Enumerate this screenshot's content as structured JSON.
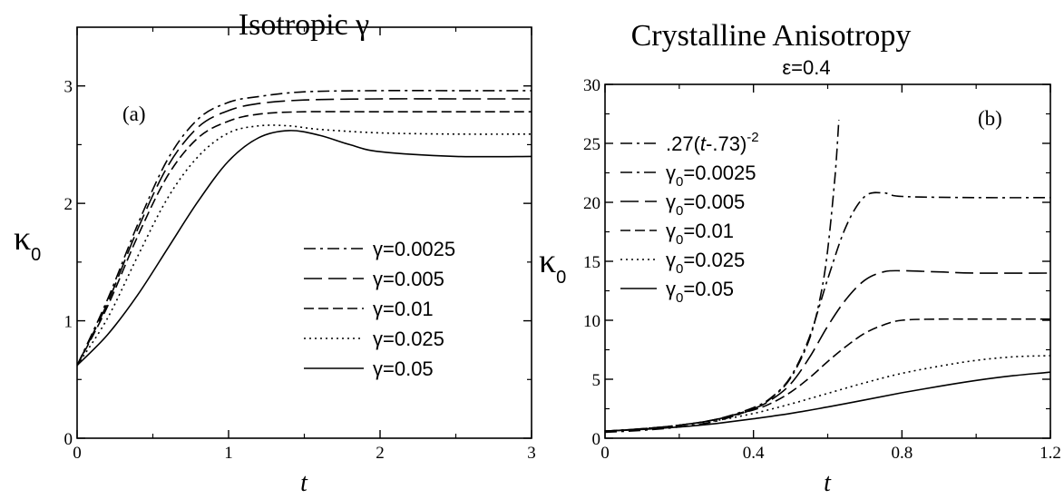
{
  "chart_data": [
    {
      "type": "line",
      "title": "Isotropic γ",
      "xlabel": "t",
      "ylabel": "κ",
      "ylabel_sub": "0",
      "panel_label": "(a)",
      "xlim": [
        0,
        3
      ],
      "ylim": [
        0,
        3.5
      ],
      "xticks": [
        "0",
        "1",
        "2",
        "3"
      ],
      "yticks": [
        "0",
        "1",
        "2",
        "3"
      ],
      "grid": false,
      "legend_position": "center-right",
      "series": [
        {
          "name": "γ=0.0025",
          "style": "dashdot",
          "x": [
            0,
            0.2,
            0.4,
            0.6,
            0.8,
            1.0,
            1.2,
            1.5,
            2.0,
            2.5,
            3.0
          ],
          "y": [
            0.62,
            1.18,
            1.82,
            2.38,
            2.72,
            2.86,
            2.91,
            2.95,
            2.96,
            2.96,
            2.96
          ]
        },
        {
          "name": "γ=0.005",
          "style": "longdash",
          "x": [
            0,
            0.2,
            0.4,
            0.6,
            0.8,
            1.0,
            1.2,
            1.5,
            2.0,
            2.5,
            3.0
          ],
          "y": [
            0.62,
            1.15,
            1.78,
            2.32,
            2.65,
            2.79,
            2.85,
            2.88,
            2.89,
            2.89,
            2.89
          ]
        },
        {
          "name": "γ=0.01",
          "style": "dash",
          "x": [
            0,
            0.2,
            0.4,
            0.6,
            0.8,
            1.0,
            1.2,
            1.5,
            2.0,
            2.5,
            3.0
          ],
          "y": [
            0.62,
            1.12,
            1.72,
            2.24,
            2.56,
            2.7,
            2.76,
            2.78,
            2.78,
            2.78,
            2.78
          ]
        },
        {
          "name": "γ=0.025",
          "style": "dotted",
          "x": [
            0,
            0.2,
            0.4,
            0.6,
            0.8,
            1.0,
            1.2,
            1.4,
            1.6,
            2.0,
            2.5,
            3.0
          ],
          "y": [
            0.62,
            1.02,
            1.55,
            2.05,
            2.4,
            2.6,
            2.66,
            2.66,
            2.63,
            2.6,
            2.59,
            2.59
          ]
        },
        {
          "name": "γ=0.05",
          "style": "solid",
          "x": [
            0,
            0.2,
            0.4,
            0.6,
            0.8,
            1.0,
            1.2,
            1.4,
            1.6,
            1.8,
            2.0,
            2.5,
            3.0
          ],
          "y": [
            0.62,
            0.88,
            1.22,
            1.62,
            2.02,
            2.36,
            2.56,
            2.62,
            2.58,
            2.5,
            2.44,
            2.4,
            2.4
          ]
        }
      ]
    },
    {
      "type": "line",
      "title": "Crystalline Anisotropy",
      "subtitle": "ε=0.4",
      "xlabel": "t",
      "ylabel": "κ",
      "ylabel_sub": "0",
      "panel_label": "(b)",
      "xlim": [
        0,
        1.2
      ],
      "ylim": [
        0,
        30
      ],
      "xticks": [
        "0",
        "0.4",
        "0.8",
        "1.2"
      ],
      "yticks": [
        "0",
        "5",
        "10",
        "15",
        "20",
        "25",
        "30"
      ],
      "grid": false,
      "legend_position": "upper-left",
      "series": [
        {
          "name": ".27(t-.73)",
          "name_prefix": ".27(",
          "name_var": "t",
          "name_suffix": "-.73)",
          "name_sup": "-2",
          "style": "dashdot",
          "x": [
            0,
            0.1,
            0.2,
            0.3,
            0.4,
            0.45,
            0.5,
            0.55,
            0.58,
            0.6,
            0.62,
            0.63
          ],
          "y": [
            0.5,
            0.67,
            0.95,
            1.45,
            2.48,
            3.45,
            5.1,
            8.33,
            11.95,
            15.98,
            22.31,
            27.0
          ]
        },
        {
          "name": "γ",
          "name_sub": "0",
          "name_suffix": "=0.0025",
          "style": "dashdot",
          "x": [
            0,
            0.1,
            0.2,
            0.3,
            0.4,
            0.45,
            0.5,
            0.55,
            0.6,
            0.65,
            0.7,
            0.75,
            0.8,
            1.0,
            1.2
          ],
          "y": [
            0.6,
            0.8,
            1.1,
            1.6,
            2.6,
            3.5,
            5.2,
            8.5,
            13.5,
            18.0,
            20.5,
            20.8,
            20.5,
            20.4,
            20.4
          ]
        },
        {
          "name": "γ",
          "name_sub": "0",
          "name_suffix": "=0.005",
          "style": "longdash",
          "x": [
            0,
            0.1,
            0.2,
            0.3,
            0.4,
            0.45,
            0.5,
            0.55,
            0.6,
            0.65,
            0.7,
            0.75,
            0.8,
            0.9,
            1.0,
            1.2
          ],
          "y": [
            0.6,
            0.8,
            1.1,
            1.6,
            2.5,
            3.3,
            4.6,
            6.8,
            9.5,
            11.8,
            13.4,
            14.1,
            14.2,
            14.1,
            14.0,
            14.0
          ]
        },
        {
          "name": "γ",
          "name_sub": "0",
          "name_suffix": "=0.01",
          "style": "dash",
          "x": [
            0,
            0.1,
            0.2,
            0.3,
            0.4,
            0.45,
            0.5,
            0.55,
            0.6,
            0.65,
            0.7,
            0.75,
            0.8,
            0.9,
            1.0,
            1.2
          ],
          "y": [
            0.6,
            0.8,
            1.1,
            1.6,
            2.4,
            3.0,
            3.9,
            5.1,
            6.5,
            7.8,
            8.9,
            9.6,
            10.0,
            10.1,
            10.1,
            10.1
          ]
        },
        {
          "name": "γ",
          "name_sub": "0",
          "name_suffix": "=0.025",
          "style": "dotted",
          "x": [
            0,
            0.1,
            0.2,
            0.3,
            0.4,
            0.5,
            0.6,
            0.7,
            0.8,
            0.9,
            1.0,
            1.1,
            1.2
          ],
          "y": [
            0.6,
            0.8,
            1.1,
            1.5,
            2.1,
            2.9,
            3.8,
            4.7,
            5.5,
            6.1,
            6.6,
            6.9,
            7.0
          ]
        },
        {
          "name": "γ",
          "name_sub": "0",
          "name_suffix": "=0.05",
          "style": "solid",
          "x": [
            0,
            0.1,
            0.2,
            0.3,
            0.4,
            0.5,
            0.6,
            0.7,
            0.8,
            0.9,
            1.0,
            1.1,
            1.2
          ],
          "y": [
            0.6,
            0.75,
            0.95,
            1.25,
            1.65,
            2.1,
            2.65,
            3.25,
            3.85,
            4.4,
            4.9,
            5.3,
            5.6
          ]
        }
      ]
    }
  ]
}
